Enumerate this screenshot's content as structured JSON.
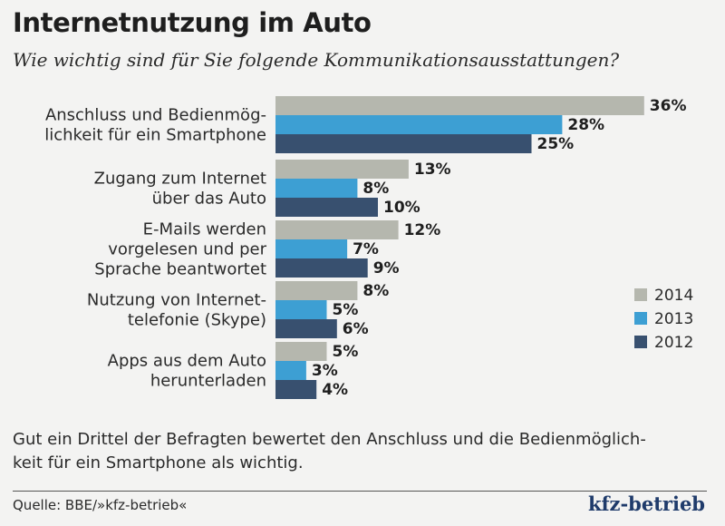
{
  "title": "Internetnutzung im Auto",
  "subtitle": "Wie wichtig sind für Sie folgende Kommunikationsausstattungen?",
  "note": "Gut ein Drittel der Befragten bewertet den Anschluss und die Bedienmöglich-keit für ein Smartphone als wichtig.",
  "note_lines": [
    "Gut ein Drittel der Befragten bewertet den Anschluss und die Bedienmöglich-",
    "keit für ein Smartphone als wichtig."
  ],
  "source": "Quelle: BBE/»kfz-betrieb«",
  "logo": "kfz-betrieb",
  "chart_data": {
    "type": "bar",
    "orientation": "horizontal",
    "categories": [
      [
        "Anschluss und Bedienmög-",
        "lichkeit für ein Smartphone"
      ],
      [
        "Zugang zum Internet",
        "über das Auto"
      ],
      [
        "E-Mails werden",
        "vorgelesen und per",
        "Sprache beantwortet"
      ],
      [
        "Nutzung von Internet-",
        "telefonie (Skype)"
      ],
      [
        "Apps aus dem Auto",
        "herunterladen"
      ]
    ],
    "series": [
      {
        "name": "2014",
        "color": "#b5b7ae",
        "values": [
          36,
          13,
          12,
          8,
          5
        ]
      },
      {
        "name": "2013",
        "color": "#3d9fd3",
        "values": [
          28,
          8,
          7,
          5,
          3
        ]
      },
      {
        "name": "2012",
        "color": "#38506f",
        "values": [
          25,
          10,
          9,
          6,
          4
        ]
      }
    ],
    "value_suffix": "%",
    "legend_position": "right",
    "grid": false
  }
}
